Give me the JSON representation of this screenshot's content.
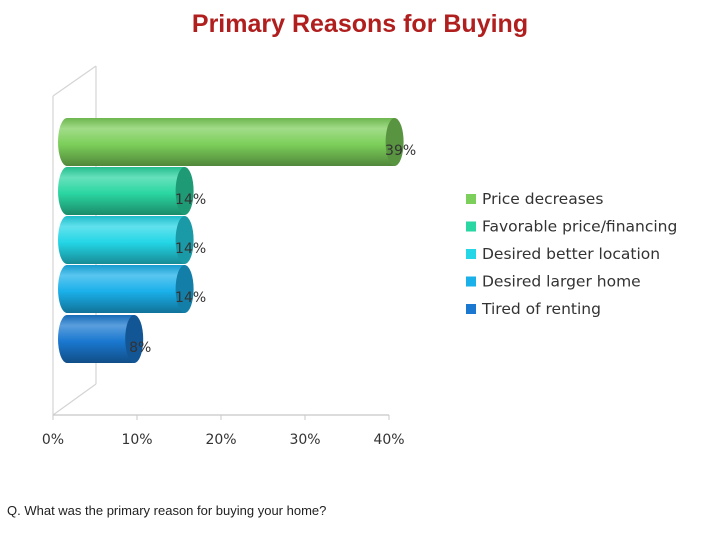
{
  "title": "Primary Reasons for Buying",
  "question": "Q. What was the primary reason for buying your home?",
  "chart_data": {
    "type": "bar",
    "orientation": "horizontal",
    "style": "3d-cylinder",
    "categories": [
      "Price decreases",
      "Favorable price/financing",
      "Desired better location",
      "Desired larger home",
      "Tired of renting"
    ],
    "values": [
      39,
      14,
      14,
      14,
      8
    ],
    "value_labels": [
      "39%",
      "14%",
      "14%",
      "14%",
      "8%"
    ],
    "colors": [
      "#7ccf5a",
      "#2ad6a1",
      "#24d6e6",
      "#1ab0ea",
      "#1a78d0"
    ],
    "x_ticks": [
      "0%",
      "10%",
      "20%",
      "30%",
      "40%"
    ],
    "xlim": [
      0,
      40
    ],
    "grid": false,
    "legend_position": "right"
  }
}
